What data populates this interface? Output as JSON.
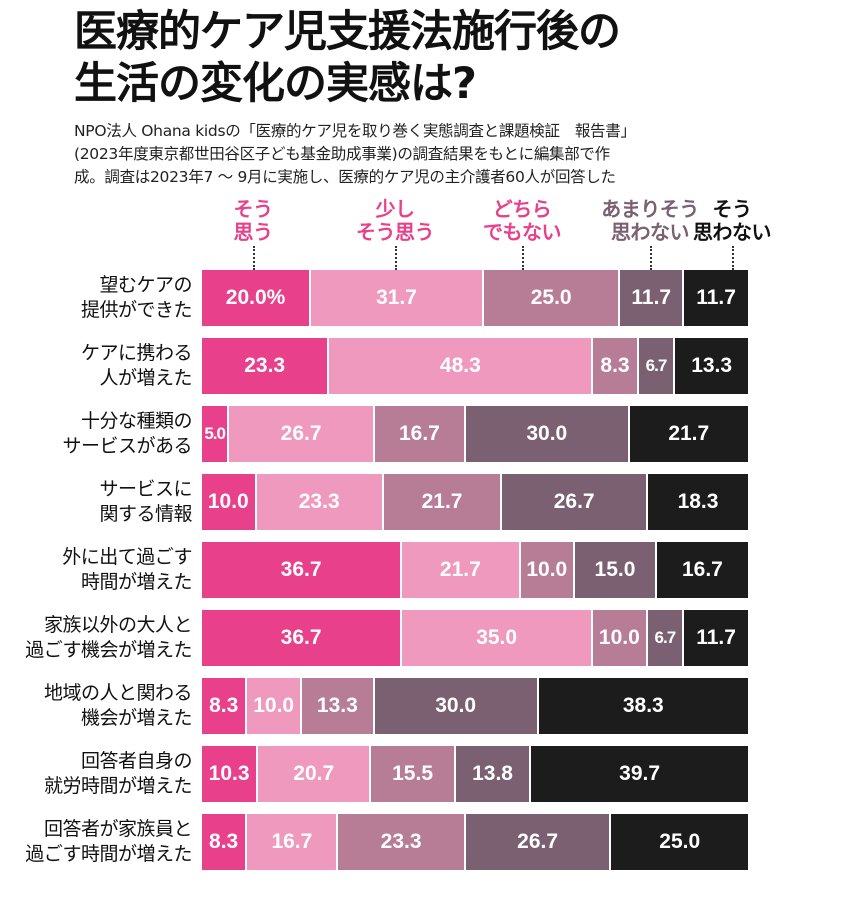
{
  "title_lines": [
    "医療的ケア児支援法施行後の",
    "生活の変化の実感は?"
  ],
  "subtitle_lines": [
    "NPO法人 Ohana kidsの「医療的ケア児を取り巻く実態調査と課題検証　報告書」",
    "(2023年度東京都世田谷区子ども基金助成事業)の調査結果をもとに編集部で作",
    "成。調査は2023年7 ～ 9月に実施し、医療的ケア児の主介護者60人が回答した"
  ],
  "colors": [
    "#e8408a",
    "#f099bf",
    "#b87d96",
    "#7a6070",
    "#1c1c1c"
  ],
  "chart_data": {
    "type": "bar",
    "orientation": "horizontal",
    "stacked": true,
    "unit": "%",
    "legend_position": "top",
    "categories": [
      [
        "望むケアの",
        "提供ができた"
      ],
      [
        "ケアに携わる",
        "人が増えた"
      ],
      [
        "十分な種類の",
        "サービスがある"
      ],
      [
        "サービスに",
        "関する情報"
      ],
      [
        "外に出て過ごす",
        "時間が増えた"
      ],
      [
        "家族以外の大人と",
        "過ごす機会が増えた"
      ],
      [
        "地域の人と関わる",
        "機会が増えた"
      ],
      [
        "回答者自身の",
        "就労時間が増えた"
      ],
      [
        "回答者が家族員と",
        "過ごす時間が増えた"
      ]
    ],
    "series": [
      {
        "name": [
          "そう",
          "思う"
        ],
        "values": [
          20.0,
          23.3,
          5.0,
          10.0,
          36.7,
          36.7,
          8.3,
          10.3,
          8.3
        ]
      },
      {
        "name": [
          "少し",
          "そう思う"
        ],
        "values": [
          31.7,
          48.3,
          26.7,
          23.3,
          21.7,
          35.0,
          10.0,
          20.7,
          16.7
        ]
      },
      {
        "name": [
          "どちら",
          "でもない"
        ],
        "values": [
          25.0,
          8.3,
          16.7,
          21.7,
          10.0,
          10.0,
          13.3,
          15.5,
          23.3
        ]
      },
      {
        "name": [
          "あまりそう",
          "思わない"
        ],
        "values": [
          11.7,
          6.7,
          30.0,
          26.7,
          15.0,
          6.7,
          30.0,
          13.8,
          26.7
        ]
      },
      {
        "name": [
          "そう",
          "思わない"
        ],
        "values": [
          11.7,
          13.3,
          21.7,
          18.3,
          16.7,
          11.7,
          38.3,
          39.7,
          25.0
        ]
      }
    ],
    "labels": [
      [
        "20.0%",
        "31.7",
        "25.0",
        "11.7",
        "11.7"
      ],
      [
        "23.3",
        "48.3",
        "8.3",
        "6.7",
        "13.3"
      ],
      [
        "5.0",
        "26.7",
        "16.7",
        "30.0",
        "21.7"
      ],
      [
        "10.0",
        "23.3",
        "21.7",
        "26.7",
        "18.3"
      ],
      [
        "36.7",
        "21.7",
        "10.0",
        "15.0",
        "16.7"
      ],
      [
        "36.7",
        "35.0",
        "10.0",
        "6.7",
        "11.7"
      ],
      [
        "8.3",
        "10.0",
        "13.3",
        "30.0",
        "38.3"
      ],
      [
        "10.3",
        "20.7",
        "15.5",
        "13.8",
        "39.7"
      ],
      [
        "8.3",
        "16.7",
        "23.3",
        "26.7",
        "25.0"
      ]
    ]
  }
}
